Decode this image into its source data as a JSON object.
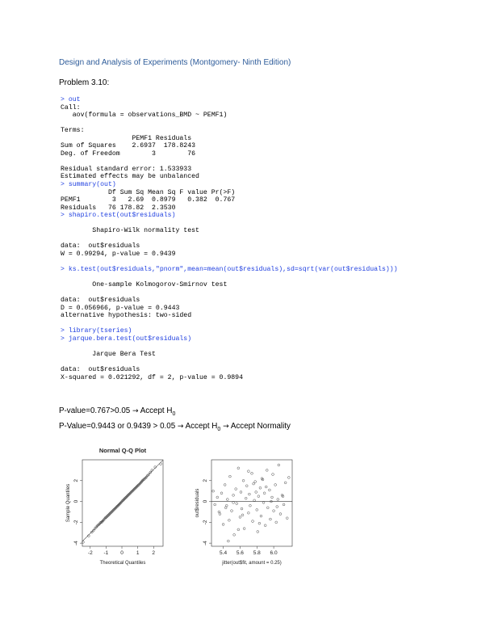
{
  "header": {
    "title": "Design and Analysis of Experiments (Montgomery- Ninth Edition)",
    "problem": "Problem 3.10:"
  },
  "console": [
    {
      "type": "cmd",
      "text": "> out"
    },
    {
      "type": "out",
      "text": "Call:"
    },
    {
      "type": "out",
      "text": "   aov(formula = observations_BMD ~ PEMF1)"
    },
    {
      "type": "gap"
    },
    {
      "type": "out",
      "text": "Terms:"
    },
    {
      "type": "out",
      "text": "                  PEMF1 Residuals"
    },
    {
      "type": "out",
      "text": "Sum of Squares    2.6937  178.8243"
    },
    {
      "type": "out",
      "text": "Deg. of Freedom        3        76"
    },
    {
      "type": "gap"
    },
    {
      "type": "out",
      "text": "Residual standard error: 1.533933"
    },
    {
      "type": "out",
      "text": "Estimated effects may be unbalanced"
    },
    {
      "type": "cmd",
      "text": "> summary(out)"
    },
    {
      "type": "out",
      "text": "            Df Sum Sq Mean Sq F value Pr(>F)"
    },
    {
      "type": "out",
      "text": "PEMF1        3   2.69  0.8979   0.382  0.767"
    },
    {
      "type": "out",
      "text": "Residuals   76 178.82  2.3530"
    },
    {
      "type": "cmd",
      "text": "> shapiro.test(out$residuals)"
    },
    {
      "type": "gap"
    },
    {
      "type": "out",
      "text": "        Shapiro-Wilk normality test"
    },
    {
      "type": "gap"
    },
    {
      "type": "out",
      "text": "data:  out$residuals"
    },
    {
      "type": "out",
      "text": "W = 0.99294, p-value = 0.9439"
    },
    {
      "type": "gap"
    },
    {
      "type": "cmd",
      "text": "> ks.test(out$residuals,\"pnorm\",mean=mean(out$residuals),sd=sqrt(var(out$residuals)))"
    },
    {
      "type": "gap"
    },
    {
      "type": "out",
      "text": "        One-sample Kolmogorov-Smirnov test"
    },
    {
      "type": "gap"
    },
    {
      "type": "out",
      "text": "data:  out$residuals"
    },
    {
      "type": "out",
      "text": "D = 0.056966, p-value = 0.9443"
    },
    {
      "type": "out",
      "text": "alternative hypothesis: two-sided"
    },
    {
      "type": "gap"
    },
    {
      "type": "cmd",
      "text": "> library(tseries)"
    },
    {
      "type": "cmd",
      "text": "> jarque.bera.test(out$residuals)"
    },
    {
      "type": "gap"
    },
    {
      "type": "out",
      "text": "        Jarque Bera Test"
    },
    {
      "type": "gap"
    },
    {
      "type": "out",
      "text": "data:  out$residuals"
    },
    {
      "type": "out",
      "text": "X-squared = 0.021292, df = 2, p-value = 0.9894"
    }
  ],
  "conclusions": {
    "line1_text": "P-value=0.767>0.05 ",
    "line1_result": " Accept H",
    "line2_text": "P-Value=0.9443 or 0.9439 > 0.05 ",
    "line2_result": " Accept H",
    "line2_extra": " Accept Normality",
    "subscript": "0",
    "arrow_icon": "right-arrow-icon"
  },
  "chart_data": [
    {
      "type": "scatter",
      "title": "Normal Q-Q Plot",
      "xlabel": "Theoretical Quantiles",
      "ylabel": "Sample Quantiles",
      "xticks": [
        -2,
        -1,
        0,
        1,
        2
      ],
      "yticks": [
        -4,
        -2,
        0,
        2
      ],
      "xlim": [
        -2.5,
        2.6
      ],
      "ylim": [
        -4.3,
        4.0
      ],
      "reference_line": {
        "intercept": 0,
        "slope": 1.53
      },
      "x": [
        -2.45,
        -2.1,
        -1.9,
        -1.8,
        -1.7,
        -1.62,
        -1.55,
        -1.48,
        -1.42,
        -1.36,
        -1.3,
        -1.25,
        -1.2,
        -1.14,
        -1.08,
        -1.03,
        -0.98,
        -0.93,
        -0.88,
        -0.83,
        -0.78,
        -0.73,
        -0.68,
        -0.63,
        -0.58,
        -0.53,
        -0.48,
        -0.43,
        -0.38,
        -0.33,
        -0.28,
        -0.23,
        -0.18,
        -0.13,
        -0.08,
        -0.03,
        0.03,
        0.08,
        0.13,
        0.18,
        0.23,
        0.28,
        0.33,
        0.38,
        0.43,
        0.48,
        0.53,
        0.58,
        0.63,
        0.68,
        0.73,
        0.78,
        0.83,
        0.88,
        0.93,
        0.98,
        1.03,
        1.08,
        1.14,
        1.2,
        1.25,
        1.3,
        1.36,
        1.42,
        1.48,
        1.55,
        1.62,
        1.7,
        1.8,
        1.9,
        2.1,
        2.45
      ],
      "y": [
        -3.9,
        -3.3,
        -2.95,
        -2.8,
        -2.6,
        -2.45,
        -2.35,
        -2.25,
        -2.15,
        -2.05,
        -2.0,
        -1.95,
        -1.85,
        -1.75,
        -1.65,
        -1.55,
        -1.5,
        -1.42,
        -1.35,
        -1.28,
        -1.2,
        -1.12,
        -1.05,
        -0.98,
        -0.9,
        -0.82,
        -0.75,
        -0.68,
        -0.6,
        -0.52,
        -0.45,
        -0.38,
        -0.3,
        -0.22,
        -0.14,
        -0.05,
        0.05,
        0.12,
        0.2,
        0.28,
        0.35,
        0.42,
        0.5,
        0.58,
        0.65,
        0.72,
        0.8,
        0.88,
        0.95,
        1.02,
        1.1,
        1.18,
        1.25,
        1.32,
        1.4,
        1.48,
        1.55,
        1.62,
        1.72,
        1.82,
        1.9,
        2.0,
        2.08,
        2.15,
        2.25,
        2.35,
        2.48,
        2.6,
        2.8,
        3.0,
        3.3,
        3.6
      ]
    },
    {
      "type": "scatter",
      "title": "",
      "xlabel": "jitter(out$fit, amount = 0.25)",
      "ylabel": "out$residuals",
      "xticks": [
        5.4,
        5.6,
        5.8,
        6.0
      ],
      "xtick_labels": [
        "5.4",
        "5.6",
        "5.8",
        "6.0"
      ],
      "yticks": [
        -4,
        -2,
        0,
        2
      ],
      "xlim": [
        5.26,
        6.22
      ],
      "ylim": [
        -4.3,
        4.0
      ],
      "reference_line": {
        "horizontal": 0
      },
      "x": [
        5.28,
        5.3,
        5.33,
        5.36,
        5.38,
        5.4,
        5.42,
        5.43,
        5.45,
        5.47,
        5.48,
        5.5,
        5.52,
        5.53,
        5.55,
        5.56,
        5.58,
        5.6,
        5.61,
        5.62,
        5.64,
        5.65,
        5.67,
        5.68,
        5.7,
        5.71,
        5.72,
        5.74,
        5.75,
        5.77,
        5.78,
        5.8,
        5.81,
        5.82,
        5.84,
        5.85,
        5.86,
        5.88,
        5.89,
        5.9,
        5.92,
        5.93,
        5.95,
        5.96,
        5.98,
        5.99,
        6.0,
        6.02,
        6.03,
        6.05,
        6.06,
        6.08,
        6.1,
        6.12,
        6.14,
        6.16,
        6.18,
        5.46,
        5.58,
        5.7,
        5.83,
        5.97,
        5.35,
        5.63,
        5.79,
        5.91,
        6.04,
        5.52,
        5.76,
        6.11,
        5.44,
        5.87
      ],
      "y": [
        1.0,
        -0.3,
        0.4,
        -1.2,
        0.8,
        -2.2,
        1.6,
        -0.6,
        0.2,
        -1.8,
        2.4,
        -0.9,
        0.6,
        -3.2,
        1.2,
        -0.2,
        3.2,
        -1.5,
        0.9,
        -0.7,
        2.0,
        -2.6,
        0.3,
        1.5,
        -1.1,
        0.7,
        -0.4,
        2.7,
        -1.9,
        0.1,
        1.9,
        -0.8,
        -2.9,
        0.5,
        1.3,
        -1.4,
        2.2,
        -0.1,
        0.8,
        -2.3,
        3.0,
        -0.6,
        1.1,
        -1.7,
        0.4,
        2.6,
        -0.9,
        1.6,
        -2.0,
        0.2,
        3.5,
        -1.2,
        0.6,
        -0.3,
        1.8,
        -1.6,
        2.3,
        -3.8,
        -2.7,
        2.9,
        -2.1,
        0.0,
        -1.0,
        -1.3,
        0.9,
        1.4,
        -0.5,
        -0.1,
        1.7,
        0.5,
        -0.4,
        2.1
      ]
    }
  ]
}
